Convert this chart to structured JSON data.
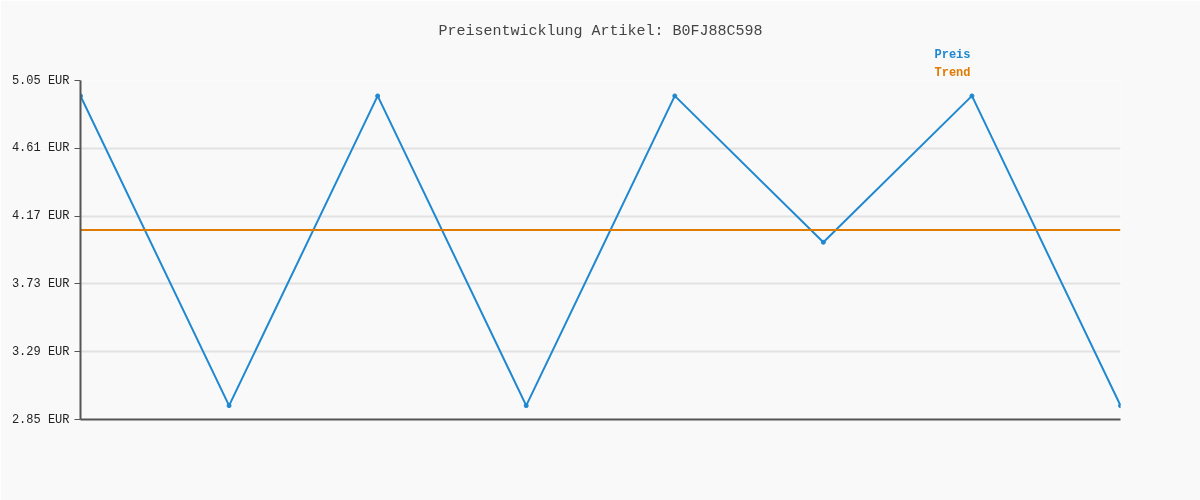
{
  "chart_data": {
    "type": "line",
    "title": "Preisentwicklung Artikel: B0FJ88C598",
    "categories": [
      null,
      null,
      null,
      null,
      null,
      null,
      null,
      null
    ],
    "series": [
      {
        "name": "Preis",
        "color": "#1f88d0",
        "marker": "circle",
        "values": [
          4.95,
          2.94,
          4.95,
          2.94,
          4.95,
          4.0,
          4.95,
          2.94
        ]
      },
      {
        "name": "Trend",
        "color": "#e07b00",
        "marker": "none",
        "values": [
          4.08,
          4.08,
          4.08,
          4.08,
          4.08,
          4.08,
          4.08,
          4.08
        ]
      }
    ],
    "ylim": [
      2.85,
      5.05
    ],
    "yticks": [
      {
        "value": 2.85,
        "label": "2.85 EUR"
      },
      {
        "value": 3.29,
        "label": "3.29 EUR"
      },
      {
        "value": 3.73,
        "label": "3.73 EUR"
      },
      {
        "value": 4.17,
        "label": "4.17 EUR"
      },
      {
        "value": 4.61,
        "label": "4.61 EUR"
      },
      {
        "value": 5.05,
        "label": "5.05 EUR"
      }
    ],
    "grid": "y"
  }
}
